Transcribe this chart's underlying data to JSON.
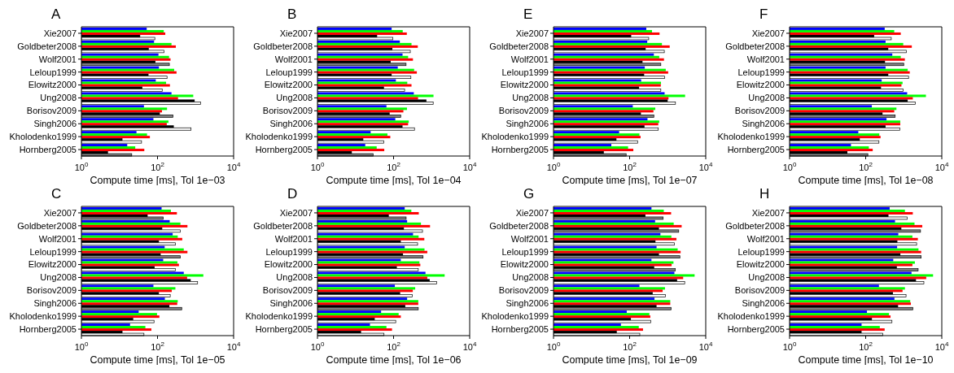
{
  "chart_data": [
    {
      "type": "bar",
      "orientation": "horizontal",
      "log": "x",
      "title": "A",
      "xlabel": "Compute time [ms], Tol 1e−03",
      "categories": [
        "Xie2007",
        "Goldbeter2008",
        "Wolf2001",
        "Leloup1999",
        "Elowitz2000",
        "Ung2008",
        "Borisov2009",
        "Singh2006",
        "Kholodenko1999",
        "Hornberg2005"
      ],
      "xlim": [
        1,
        10000
      ],
      "xticks": [
        {
          "value": 1,
          "label": "10$^{0}$"
        },
        {
          "value": 100,
          "label": "10$^{2}$"
        },
        {
          "value": 10000,
          "label": "10$^{4}$"
        }
      ],
      "series": [
        {
          "color": "#0000ff",
          "values": [
            52,
            81,
            106,
            109,
            90,
            233,
            44,
            78,
            28,
            16
          ]
        },
        {
          "color": "#00ff00",
          "values": [
            146,
            233,
            201,
            274,
            168,
            870,
            178,
            194,
            53,
            26
          ]
        },
        {
          "color": "#ff0000",
          "values": [
            160,
            303,
            220,
            316,
            212,
            346,
            131,
            175,
            63,
            45
          ]
        },
        {
          "color": "#000000",
          "values": [
            35,
            59,
            88,
            58,
            40,
            946,
            115,
            268,
            12,
            5
          ]
        },
        {
          "color": "#ffffff",
          "colors": [
            "#ffffff",
            "#ffffff",
            "#808080",
            "#ffffff",
            "#ffffff",
            "#ffffff",
            "#808080",
            "#ffffff",
            "#ffffff",
            "#808080"
          ],
          "values": [
            85,
            148,
            205,
            178,
            133,
            1350,
            256,
            760,
            38,
            21
          ]
        }
      ]
    },
    {
      "type": "bar",
      "orientation": "horizontal",
      "log": "x",
      "title": "B",
      "xlabel": "Compute time [ms], Tol 1e−04",
      "categories": [
        "Xie2007",
        "Goldbeter2008",
        "Wolf2001",
        "Leloup1999",
        "Elowitz2000",
        "Ung2008",
        "Borisov2009",
        "Singh2006",
        "Kholodenko1999",
        "Hornberg2005"
      ],
      "xlim": [
        1,
        10000
      ],
      "xticks": [
        {
          "value": 1,
          "label": "10$^{0}$"
        },
        {
          "value": 100,
          "label": "10$^{2}$"
        },
        {
          "value": 10000,
          "label": "10$^{4}$"
        }
      ],
      "series": [
        {
          "color": "#0000ff",
          "values": [
            89,
            146,
            172,
            129,
            115,
            340,
            65,
            111,
            25,
            18
          ]
        },
        {
          "color": "#00ff00",
          "values": [
            174,
            296,
            241,
            347,
            229,
            1120,
            225,
            251,
            69,
            36
          ]
        },
        {
          "color": "#ff0000",
          "values": [
            223,
            433,
            323,
            409,
            296,
            440,
            181,
            241,
            82,
            57
          ]
        },
        {
          "color": "#000000",
          "values": [
            37,
            93,
            84,
            89,
            56,
            730,
            79,
            172,
            16,
            8
          ]
        },
        {
          "color": "#ffffff",
          "colors": [
            "#ffffff",
            "#ffffff",
            "#808080",
            "#ffffff",
            "#ffffff",
            "#ffffff",
            "#808080",
            "#ffffff",
            "#ffffff",
            "#808080"
          ],
          "values": [
            96,
            275,
            213,
            285,
            195,
            1100,
            154,
            355,
            55,
            29
          ]
        }
      ]
    },
    {
      "type": "bar",
      "orientation": "horizontal",
      "log": "x",
      "title": "E",
      "xlabel": "Compute time [ms], Tol 1e−07",
      "categories": [
        "Xie2007",
        "Goldbeter2008",
        "Wolf2001",
        "Leloup1999",
        "Elowitz2000",
        "Ung2008",
        "Borisov2009",
        "Singh2006",
        "Kholodenko1999",
        "Hornberg2005"
      ],
      "xlim": [
        1,
        10000
      ],
      "xticks": [
        {
          "value": 1,
          "label": "10$^{0}$"
        },
        {
          "value": 100,
          "label": "10$^{2}$"
        },
        {
          "value": 10000,
          "label": "10$^{4}$"
        }
      ],
      "series": [
        {
          "color": "#0000ff",
          "values": [
            274,
            290,
            433,
            250,
            201,
            830,
            121,
            295,
            53,
            33
          ]
        },
        {
          "color": "#00ff00",
          "values": [
            387,
            706,
            600,
            890,
            667,
            2870,
            472,
            600,
            181,
            91
          ]
        },
        {
          "color": "#ff0000",
          "values": [
            612,
            1130,
            800,
            1030,
            660,
            1050,
            422,
            566,
            194,
            125
          ]
        },
        {
          "color": "#000000",
          "values": [
            110,
            264,
            218,
            241,
            177,
            1000,
            198,
            246,
            45,
            21
          ]
        },
        {
          "color": "#ffffff",
          "colors": [
            "#ffffff",
            "#ffffff",
            "#808080",
            "#ffffff",
            "#ffffff",
            "#ffffff",
            "#808080",
            "#ffffff",
            "#ffffff",
            "#808080"
          ],
          "values": [
            317,
            815,
            660,
            830,
            660,
            1600,
            433,
            566,
            162,
            81
          ]
        }
      ]
    },
    {
      "type": "bar",
      "orientation": "horizontal",
      "log": "x",
      "title": "F",
      "xlabel": "Compute time [ms], Tol 1e−08",
      "categories": [
        "Xie2007",
        "Goldbeter2008",
        "Wolf2001",
        "Leloup1999",
        "Elowitz2000",
        "Ung2008",
        "Borisov2009",
        "Singh2006",
        "Kholodenko1999",
        "Hornberg2005"
      ],
      "xlim": [
        1,
        10000
      ],
      "xticks": [
        {
          "value": 1,
          "label": "10$^{0}$"
        },
        {
          "value": 100,
          "label": "10$^{2}$"
        },
        {
          "value": 10000,
          "label": "10$^{4}$"
        }
      ],
      "series": [
        {
          "color": "#0000ff",
          "values": [
            316,
            333,
            500,
            333,
            263,
            1230,
            145,
            353,
            64,
            41
          ]
        },
        {
          "color": "#00ff00",
          "values": [
            563,
            970,
            835,
            1270,
            933,
            3830,
            643,
            810,
            228,
            121
          ]
        },
        {
          "color": "#ff0000",
          "values": [
            835,
            1630,
            1070,
            1440,
            870,
            1730,
            563,
            810,
            246,
            153
          ]
        },
        {
          "color": "#000000",
          "values": [
            167,
            392,
            322,
            392,
            253,
            1270,
            277,
            333,
            70,
            33
          ]
        },
        {
          "color": "#ffffff",
          "colors": [
            "#ffffff",
            "#ffffff",
            "#808080",
            "#ffffff",
            "#ffffff",
            "#ffffff",
            "#808080",
            "#ffffff",
            "#ffffff",
            "#808080"
          ],
          "values": [
            470,
            1180,
            1000,
            1340,
            970,
            2000,
            595,
            795,
            223,
            114
          ]
        }
      ]
    },
    {
      "type": "bar",
      "orientation": "horizontal",
      "log": "x",
      "title": "C",
      "xlabel": "Compute time [ms], Tol 1e−05",
      "categories": [
        "Xie2007",
        "Goldbeter2008",
        "Wolf2001",
        "Leloup1999",
        "Elowitz2000",
        "Ung2008",
        "Borisov2009",
        "Singh2006",
        "Kholodenko1999",
        "Hornberg2005"
      ],
      "xlim": [
        1,
        10000
      ],
      "xticks": [
        {
          "value": 1,
          "label": "10$^{0}$"
        },
        {
          "value": 100,
          "label": "10$^{2}$"
        },
        {
          "value": 10000,
          "label": "10$^{4}$"
        }
      ],
      "series": [
        {
          "color": "#0000ff",
          "values": [
            128,
            209,
            250,
            154,
            141,
            490,
            78,
            156,
            32,
            19
          ]
        },
        {
          "color": "#00ff00",
          "values": [
            225,
            400,
            340,
            490,
            333,
            1600,
            295,
            340,
            97,
            48
          ]
        },
        {
          "color": "#ff0000",
          "values": [
            323,
            612,
            447,
            612,
            366,
            600,
            237,
            330,
            112,
            69
          ]
        },
        {
          "color": "#000000",
          "values": [
            55,
            133,
            109,
            121,
            84,
            745,
            109,
            205,
            23,
            12
          ]
        },
        {
          "color": "#ffffff",
          "colors": [
            "#808080",
            "#ffffff",
            "#ffffff",
            "#808080",
            "#ffffff",
            "#ffffff",
            "#ffffff",
            "#808080",
            "#ffffff",
            "#ffffff"
          ],
          "values": [
            142,
            395,
            295,
            400,
            295,
            1130,
            216,
            433,
            81,
            44
          ]
        }
      ]
    },
    {
      "type": "bar",
      "orientation": "horizontal",
      "log": "x",
      "title": "D",
      "xlabel": "Compute time [ms], Tol 1e−06",
      "categories": [
        "Xie2007",
        "Goldbeter2008",
        "Wolf2001",
        "Leloup1999",
        "Elowitz2000",
        "Ung2008",
        "Borisov2009",
        "Singh2006",
        "Kholodenko1999",
        "Hornberg2005"
      ],
      "xlim": [
        1,
        10000
      ],
      "xticks": [
        {
          "value": 1,
          "label": "10$^{0}$"
        },
        {
          "value": 100,
          "label": "10$^{2}$"
        },
        {
          "value": 10000,
          "label": "10$^{4}$"
        }
      ],
      "series": [
        {
          "color": "#0000ff",
          "values": [
            196,
            227,
            325,
            196,
            155,
            690,
            108,
            227,
            47,
            24
          ]
        },
        {
          "color": "#00ff00",
          "values": [
            293,
            524,
            455,
            650,
            478,
            2200,
            370,
            446,
            136,
            65
          ]
        },
        {
          "color": "#ff0000",
          "values": [
            460,
            908,
            643,
            770,
            505,
            770,
            320,
            446,
            155,
            91
          ]
        },
        {
          "color": "#000000",
          "values": [
            75,
            187,
            155,
            177,
            122,
            890,
            149,
            203,
            32,
            14
          ]
        },
        {
          "color": "#ffffff",
          "colors": [
            "#808080",
            "#ffffff",
            "#ffffff",
            "#808080",
            "#ffffff",
            "#ffffff",
            "#ffffff",
            "#808080",
            "#ffffff",
            "#ffffff"
          ],
          "values": [
            214,
            575,
            428,
            595,
            446,
            1370,
            310,
            446,
            114,
            56
          ]
        }
      ]
    },
    {
      "type": "bar",
      "orientation": "horizontal",
      "log": "x",
      "title": "G",
      "xlabel": "Compute time [ms], Tol 1e−09",
      "categories": [
        "Xie2007",
        "Goldbeter2008",
        "Wolf2001",
        "Leloup1999",
        "Elowitz2000",
        "Ung2008",
        "Borisov2009",
        "Singh2006",
        "Kholodenko1999",
        "Hornberg2005"
      ],
      "xlim": [
        1,
        10000
      ],
      "xticks": [
        {
          "value": 1,
          "label": "10$^{0}$"
        },
        {
          "value": 100,
          "label": "10$^{2}$"
        },
        {
          "value": 10000,
          "label": "10$^{4}$"
        }
      ],
      "series": [
        {
          "color": "#0000ff",
          "values": [
            375,
            467,
            645,
            510,
            375,
            1500,
            181,
            450,
            84,
            59
          ]
        },
        {
          "color": "#00ff00",
          "values": [
            790,
            1440,
            1250,
            1830,
            1420,
            5100,
            850,
            1170,
            330,
            174
          ]
        },
        {
          "color": "#ff0000",
          "values": [
            1230,
            2330,
            1700,
            2190,
            1270,
            2550,
            737,
            1170,
            350,
            225
          ]
        },
        {
          "color": "#000000",
          "values": [
            260,
            590,
            477,
            590,
            443,
            1770,
            404,
            510,
            108,
            46
          ]
        },
        {
          "color": "#ffffff",
          "colors": [
            "#808080",
            "#808080",
            "#ffffff",
            "#808080",
            "#808080",
            "#ffffff",
            "#ffffff",
            "#808080",
            "#ffffff",
            "#ffffff"
          ],
          "values": [
            760,
            1950,
            1500,
            2090,
            1590,
            2800,
            870,
            1230,
            360,
            185
          ]
        }
      ]
    },
    {
      "type": "bar",
      "orientation": "horizontal",
      "log": "x",
      "title": "H",
      "xlabel": "Compute time [ms], Tol 1e−10",
      "categories": [
        "Xie2007",
        "Goldbeter2008",
        "Wolf2001",
        "Leloup1999",
        "Elowitz2000",
        "Ung2008",
        "Borisov2009",
        "Singh2006",
        "Kholodenko1999",
        "Hornberg2005"
      ],
      "xlim": [
        1,
        10000
      ],
      "xticks": [
        {
          "value": 1,
          "label": "10$^{0}$"
        },
        {
          "value": 100,
          "label": "10$^{2}$"
        },
        {
          "value": 10000,
          "label": "10$^{4}$"
        }
      ],
      "series": [
        {
          "color": "#0000ff",
          "values": [
            427,
            590,
            720,
            670,
            530,
            1600,
            223,
            570,
            108,
            78
          ]
        },
        {
          "color": "#00ff00",
          "values": [
            1075,
            1920,
            1690,
            2440,
            1960,
            5900,
            1075,
            1480,
            410,
            235
          ]
        },
        {
          "color": "#ff0000",
          "values": [
            1730,
            3070,
            2350,
            2870,
            1690,
            3900,
            930,
            1540,
            450,
            315
          ]
        },
        {
          "color": "#000000",
          "values": [
            397,
            865,
            680,
            815,
            660,
            2100,
            520,
            710,
            146,
            78
          ]
        },
        {
          "color": "#ffffff",
          "colors": [
            "#ffffff",
            "#808080",
            "#ffffff",
            "#808080",
            "#808080",
            "#ffffff",
            "#ffffff",
            "#808080",
            "#ffffff",
            "#ffffff"
          ],
          "values": [
            1230,
            2760,
            2180,
            2870,
            2390,
            3380,
            1150,
            1730,
            490,
            280
          ]
        }
      ]
    }
  ]
}
